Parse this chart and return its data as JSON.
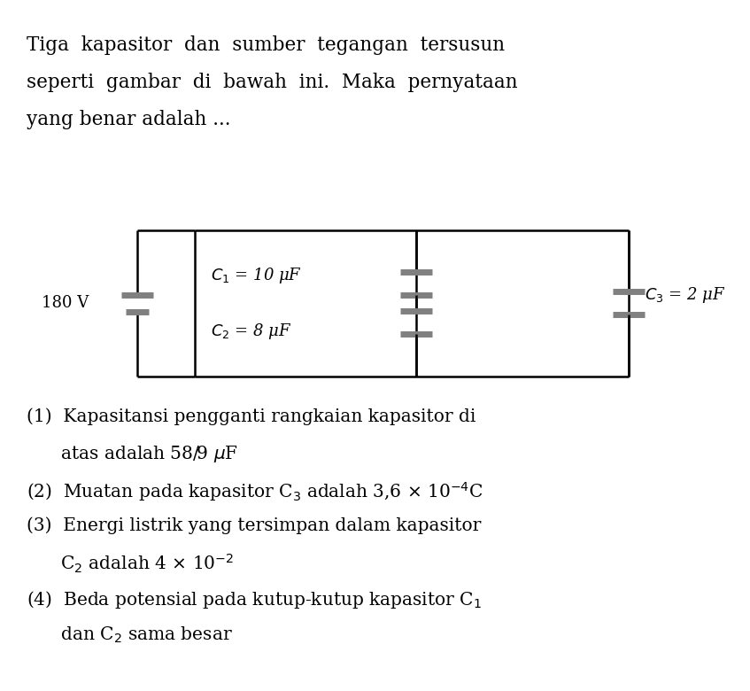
{
  "title_text": "Tiga kapasitor dan sumber tegangan tersusun\nseperti gambar di bawah ini. Maka pernyataan\nyang benar adalah ...",
  "voltage_label": "180 V",
  "c1_label": "$C_1$ = 10 μF",
  "c2_label": "$C_2$ = 8 μF",
  "c3_label": "$C_3$ = 2 μF",
  "items": [
    "(1) Kapasitansi pengganti rangkaian kapasitor di\n   atas adalah 58/9 μF",
    "(2) Muatan pada kapasitor C₃ adalah 3,6 × 10⁻⁴C",
    "(3) Energi listrik yang tersimpan dalam kapasitor\n   C₂ adalah 4 × 10⁻²",
    "(4) Beda potensial pada kutup-kutup kapasitor C₁\n   dan C₂ sama besar"
  ],
  "bg_color": "#ffffff",
  "text_color": "#000000",
  "circuit_line_color": "#000000",
  "capacitor_plate_color": "#808080",
  "font_size_title": 15.5,
  "font_size_circuit": 13,
  "font_size_items": 14.5
}
